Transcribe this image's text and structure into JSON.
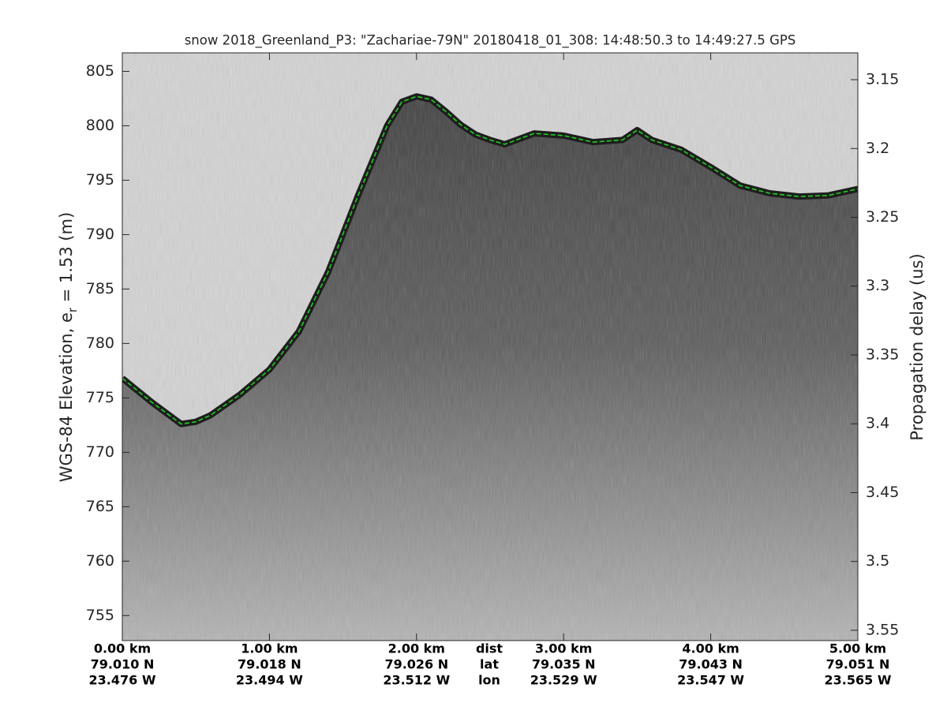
{
  "chart_data": {
    "type": "line",
    "title": "snow 2018_Greenland_P3: \"Zachariae-79N\"  20180418_01_308: 14:48:50.3 to 14:49:27.5 GPS",
    "ylabel": [
      "WGS-84 Elevation, e",
      "r",
      " = 1.53 (m)"
    ],
    "y2label": "Propagation delay (us)",
    "x": [
      0,
      0.2,
      0.4,
      0.5,
      0.6,
      0.8,
      1.0,
      1.2,
      1.4,
      1.6,
      1.8,
      1.9,
      2.0,
      2.1,
      2.2,
      2.3,
      2.4,
      2.5,
      2.6,
      2.7,
      2.8,
      3.0,
      3.2,
      3.4,
      3.5,
      3.6,
      3.8,
      4.0,
      4.2,
      4.4,
      4.6,
      4.8,
      5.0
    ],
    "series": [
      {
        "color": "#22cc22",
        "values": [
          776.8,
          774.6,
          772.6,
          772.8,
          773.4,
          775.3,
          777.6,
          781.1,
          786.6,
          793.5,
          800.0,
          802.2,
          802.7,
          802.4,
          801.3,
          800.1,
          799.2,
          798.7,
          798.3,
          798.8,
          799.3,
          799.1,
          798.5,
          798.7,
          799.6,
          798.7,
          797.8,
          796.2,
          794.5,
          793.8,
          793.5,
          793.6,
          794.2
        ]
      }
    ],
    "xlim": [
      0,
      5
    ],
    "xticks": [
      {
        "value": 0,
        "label": "0.00 km"
      },
      {
        "value": 1,
        "label": "1.00 km"
      },
      {
        "value": 2,
        "label": "2.00 km"
      },
      {
        "value": 3,
        "label": "3.00 km"
      },
      {
        "value": 4,
        "label": "4.00 km"
      },
      {
        "value": 5,
        "label": "5.00 km"
      }
    ],
    "x_lat": [
      "79.010 N",
      "79.018 N",
      "79.026 N",
      "79.035 N",
      "79.043 N",
      "79.051 N"
    ],
    "x_lon": [
      "23.476 W",
      "23.494 W",
      "23.512 W",
      "23.529 W",
      "23.547 W",
      "23.565 W"
    ],
    "row_labels": [
      "dist",
      "lat",
      "lon"
    ],
    "ylim": [
      752.7,
      806.7
    ],
    "yticks": [
      755,
      760,
      765,
      770,
      775,
      780,
      785,
      790,
      795,
      800,
      805
    ],
    "y2lim": [
      3.5575,
      3.1305
    ],
    "y2ticks": [
      3.15,
      3.2,
      3.25,
      3.3,
      3.35,
      3.4,
      3.45,
      3.5,
      3.55
    ]
  }
}
